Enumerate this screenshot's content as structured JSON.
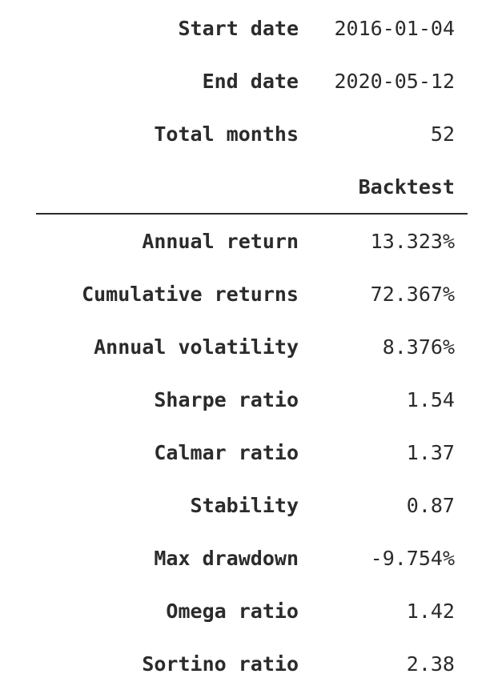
{
  "info": [
    {
      "label": "Start date",
      "value": "2016-01-04"
    },
    {
      "label": "End date",
      "value": "2020-05-12"
    },
    {
      "label": "Total months",
      "value": "52"
    }
  ],
  "column_header": "Backtest",
  "metrics": [
    {
      "label": "Annual return",
      "value": "13.323%"
    },
    {
      "label": "Cumulative returns",
      "value": "72.367%"
    },
    {
      "label": "Annual volatility",
      "value": "8.376%"
    },
    {
      "label": "Sharpe ratio",
      "value": "1.54"
    },
    {
      "label": "Calmar ratio",
      "value": "1.37"
    },
    {
      "label": "Stability",
      "value": "0.87"
    },
    {
      "label": "Max drawdown",
      "value": "-9.754%"
    },
    {
      "label": "Omega ratio",
      "value": "1.42"
    },
    {
      "label": "Sortino ratio",
      "value": "2.38"
    }
  ]
}
